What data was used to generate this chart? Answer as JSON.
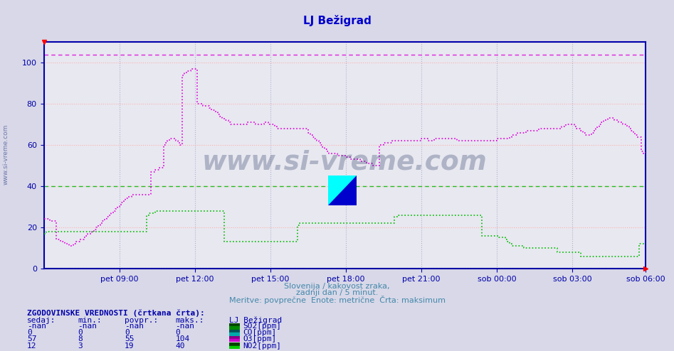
{
  "title": "LJ Bežigrad",
  "background_color": "#d8d8e8",
  "plot_bg_color": "#e8e8f0",
  "grid_color": "#ffaaaa",
  "grid_vcolor": "#aaaacc",
  "xlabel_texts": [
    "pet 09:00",
    "pet 12:00",
    "pet 15:00",
    "pet 18:00",
    "pet 21:00",
    "sob 00:00",
    "sob 03:00",
    "sob 06:00"
  ],
  "ylabel_ticks": [
    0,
    20,
    40,
    60,
    80,
    100
  ],
  "ylim": [
    0,
    110
  ],
  "title_color": "#0000cc",
  "axis_color": "#0000aa",
  "text_color": "#4488aa",
  "subtitle1": "Slovenija / kakovost zraka,",
  "subtitle2": "zadnji dan / 5 minut.",
  "subtitle3": "Meritve: povprečne  Enote: metrične  Črta: maksimum",
  "watermark": "www.si-vreme.com",
  "bottom_title": "ZGODOVINSKE VREDNOSTI (črtkana črta):",
  "col_headers": [
    "sedaj:",
    "min.:",
    "povpr.:",
    "maks.:",
    "LJ Bežigrad"
  ],
  "rows": [
    [
      "-nan",
      "-nan",
      "-nan",
      "-nan",
      "SO2[ppm]"
    ],
    [
      "0",
      "0",
      "0",
      "0",
      "CO[ppm]"
    ],
    [
      "57",
      "8",
      "55",
      "104",
      "O3[ppm]"
    ],
    [
      "12",
      "3",
      "19",
      "40",
      "NO2[ppm]"
    ]
  ],
  "n_points": 288,
  "x_tick_positions": [
    36,
    72,
    108,
    144,
    180,
    216,
    252,
    287
  ],
  "series_SO2_color": "#000000",
  "series_CO_color": "#00bbbb",
  "series_O3_color": "#dd00dd",
  "series_NO2_color": "#00bb00",
  "series_O3_max": 104,
  "series_NO2_max": 40,
  "series_O3_values": [
    24,
    24,
    24,
    23,
    23,
    23,
    14,
    14,
    13,
    13,
    12,
    12,
    11,
    11,
    12,
    13,
    13,
    14,
    14,
    15,
    16,
    17,
    17,
    18,
    19,
    20,
    21,
    22,
    23,
    24,
    25,
    26,
    27,
    28,
    29,
    30,
    31,
    32,
    33,
    34,
    35,
    35,
    36,
    36,
    36,
    36,
    36,
    36,
    36,
    36,
    36,
    47,
    47,
    48,
    48,
    49,
    49,
    60,
    61,
    62,
    63,
    63,
    63,
    62,
    61,
    60,
    94,
    95,
    96,
    96,
    97,
    97,
    97,
    80,
    80,
    80,
    79,
    79,
    79,
    78,
    77,
    77,
    76,
    75,
    74,
    73,
    72,
    72,
    71,
    70,
    70,
    70,
    70,
    70,
    70,
    70,
    70,
    71,
    71,
    71,
    71,
    70,
    70,
    70,
    70,
    71,
    71,
    70,
    70,
    70,
    69,
    68,
    68,
    68,
    68,
    68,
    68,
    68,
    68,
    68,
    68,
    68,
    68,
    68,
    68,
    68,
    66,
    65,
    64,
    63,
    62,
    61,
    60,
    59,
    58,
    57,
    56,
    56,
    56,
    56,
    55,
    55,
    55,
    55,
    54,
    54,
    53,
    53,
    53,
    53,
    53,
    52,
    52,
    52,
    51,
    51,
    51,
    50,
    50,
    50,
    60,
    60,
    61,
    61,
    61,
    61,
    62,
    62,
    62,
    62,
    62,
    62,
    62,
    62,
    62,
    62,
    62,
    62,
    62,
    62,
    63,
    63,
    63,
    62,
    62,
    62,
    63,
    63,
    63,
    63,
    63,
    63,
    63,
    63,
    63,
    63,
    63,
    62,
    62,
    62,
    62,
    62,
    62,
    62,
    62,
    62,
    62,
    62,
    62,
    62,
    62,
    62,
    62,
    62,
    62,
    62,
    63,
    63,
    63,
    63,
    63,
    63,
    64,
    65,
    65,
    65,
    66,
    66,
    66,
    66,
    67,
    67,
    67,
    67,
    67,
    67,
    68,
    68,
    68,
    68,
    68,
    68,
    68,
    68,
    68,
    68,
    68,
    69,
    69,
    70,
    70,
    70,
    70,
    69,
    68,
    68,
    67,
    66,
    65,
    65,
    65,
    66,
    67,
    68,
    69,
    70,
    71,
    72,
    72,
    73,
    73,
    73,
    72,
    72,
    71,
    71,
    70,
    70,
    69,
    68,
    67,
    66,
    65,
    64,
    64,
    57,
    56,
    57
  ],
  "series_NO2_values": [
    17,
    18,
    18,
    18,
    18,
    18,
    18,
    18,
    18,
    18,
    18,
    18,
    18,
    18,
    18,
    18,
    18,
    18,
    18,
    18,
    18,
    18,
    18,
    18,
    18,
    18,
    18,
    18,
    18,
    18,
    18,
    18,
    18,
    18,
    18,
    18,
    18,
    18,
    18,
    18,
    18,
    18,
    18,
    18,
    18,
    18,
    18,
    18,
    18,
    26,
    27,
    27,
    27,
    28,
    28,
    28,
    28,
    28,
    28,
    28,
    28,
    28,
    28,
    28,
    28,
    28,
    28,
    28,
    28,
    28,
    28,
    28,
    28,
    28,
    28,
    28,
    28,
    28,
    28,
    28,
    28,
    28,
    28,
    28,
    28,
    28,
    13,
    13,
    13,
    13,
    13,
    13,
    13,
    13,
    13,
    13,
    13,
    13,
    13,
    13,
    13,
    13,
    13,
    13,
    13,
    13,
    13,
    13,
    13,
    13,
    13,
    13,
    13,
    13,
    13,
    13,
    13,
    13,
    13,
    13,
    13,
    21,
    22,
    22,
    22,
    22,
    22,
    22,
    22,
    22,
    22,
    22,
    22,
    22,
    22,
    22,
    22,
    22,
    22,
    22,
    22,
    22,
    22,
    22,
    22,
    22,
    22,
    22,
    22,
    22,
    22,
    22,
    22,
    22,
    22,
    22,
    22,
    22,
    22,
    22,
    22,
    22,
    22,
    22,
    22,
    22,
    22,
    25,
    25,
    26,
    26,
    26,
    26,
    26,
    26,
    26,
    26,
    26,
    26,
    26,
    26,
    26,
    26,
    26,
    26,
    26,
    26,
    26,
    26,
    26,
    26,
    26,
    26,
    26,
    26,
    26,
    26,
    26,
    26,
    26,
    26,
    26,
    26,
    26,
    26,
    26,
    26,
    26,
    26,
    16,
    16,
    16,
    16,
    16,
    16,
    16,
    16,
    15,
    15,
    15,
    14,
    13,
    12,
    11,
    11,
    11,
    11,
    11,
    11,
    10,
    10,
    10,
    10,
    10,
    10,
    10,
    10,
    10,
    10,
    10,
    10,
    10,
    10,
    10,
    10,
    8,
    8,
    8,
    8,
    8,
    8,
    8,
    8,
    8,
    8,
    8,
    6,
    6,
    6,
    6,
    6,
    6,
    6,
    6,
    6,
    6,
    6,
    6,
    6,
    6,
    6,
    6,
    6,
    6,
    6,
    6,
    6,
    6,
    6,
    6,
    6,
    6,
    6,
    6,
    12,
    12,
    12,
    12
  ],
  "swatch_colors_top": [
    "#004400",
    "#005555",
    "#880088",
    "#004400"
  ],
  "swatch_colors_bottom": [
    "#008800",
    "#00aaaa",
    "#cc00cc",
    "#00cc00"
  ]
}
